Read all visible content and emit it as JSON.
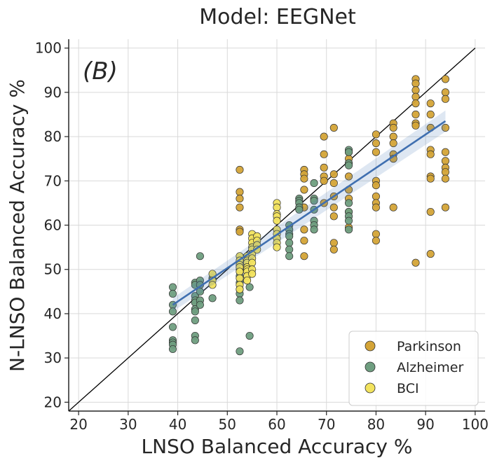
{
  "chart_data": {
    "type": "scatter",
    "title": "Model: EEGNet",
    "panel_label": "(B)",
    "xlabel": "LNSO Balanced Accuracy %",
    "ylabel": "N-LNSO Balanced Accuracy %",
    "xlim": [
      18,
      102
    ],
    "ylim": [
      18,
      102
    ],
    "xticks": [
      20,
      30,
      40,
      50,
      60,
      70,
      80,
      90,
      100
    ],
    "yticks": [
      20,
      30,
      40,
      50,
      60,
      70,
      80,
      90,
      100
    ],
    "x_tick_labels": [
      "20",
      "30",
      "40",
      "50",
      "60",
      "70",
      "80",
      "90",
      "100"
    ],
    "y_tick_labels": [
      "20",
      "30",
      "40",
      "50",
      "60",
      "70",
      "80",
      "90",
      "100"
    ],
    "grid": true,
    "legend_position": "lower-right",
    "identity_line": true,
    "regression": {
      "x_start": 39,
      "y_start": 42,
      "x_end": 94,
      "y_end": 83.5,
      "band": 1.5
    },
    "series": [
      {
        "name": "Parkinson",
        "color": "#d4a437",
        "points": [
          [
            52.5,
            72.5
          ],
          [
            52.5,
            67.5
          ],
          [
            52.5,
            66
          ],
          [
            52.5,
            64
          ],
          [
            52.5,
            59
          ],
          [
            52.5,
            58.5
          ],
          [
            65.5,
            72.5
          ],
          [
            65.5,
            71.5
          ],
          [
            65.5,
            70.5
          ],
          [
            65.5,
            68
          ],
          [
            65.5,
            64
          ],
          [
            65.5,
            59
          ],
          [
            65.5,
            56.5
          ],
          [
            65.5,
            53
          ],
          [
            69.5,
            80
          ],
          [
            69.5,
            76
          ],
          [
            69.5,
            73
          ],
          [
            69.5,
            71
          ],
          [
            69.5,
            70
          ],
          [
            69.5,
            65
          ],
          [
            71.5,
            82
          ],
          [
            71.5,
            71.5
          ],
          [
            71.5,
            69.5
          ],
          [
            71.5,
            66.5
          ],
          [
            71.5,
            64
          ],
          [
            71.5,
            62
          ],
          [
            71.5,
            56
          ],
          [
            71.5,
            54.5
          ],
          [
            74.5,
            76.5
          ],
          [
            74.5,
            75
          ],
          [
            74.5,
            74
          ],
          [
            74.5,
            71
          ],
          [
            74.5,
            68
          ],
          [
            74.5,
            66
          ],
          [
            74.5,
            63
          ],
          [
            74.5,
            59.5
          ],
          [
            80,
            80.5
          ],
          [
            80,
            78.5
          ],
          [
            80,
            76.5
          ],
          [
            80,
            70
          ],
          [
            80,
            69
          ],
          [
            80,
            66.5
          ],
          [
            80,
            65
          ],
          [
            80,
            64
          ],
          [
            80,
            58
          ],
          [
            80,
            56.5
          ],
          [
            83.5,
            83
          ],
          [
            83.5,
            82
          ],
          [
            83.5,
            80
          ],
          [
            83.5,
            78.5
          ],
          [
            83.5,
            76
          ],
          [
            83.5,
            75
          ],
          [
            83.5,
            64
          ],
          [
            88,
            93
          ],
          [
            88,
            92
          ],
          [
            88,
            90.5
          ],
          [
            88,
            89
          ],
          [
            88,
            87.5
          ],
          [
            88,
            85
          ],
          [
            88,
            83
          ],
          [
            88,
            82.5
          ],
          [
            88,
            51.5
          ],
          [
            91,
            87.5
          ],
          [
            91,
            85
          ],
          [
            91,
            82
          ],
          [
            91,
            77
          ],
          [
            91,
            76
          ],
          [
            91,
            71
          ],
          [
            91,
            70.5
          ],
          [
            91,
            63
          ],
          [
            91,
            53.5
          ],
          [
            94,
            93
          ],
          [
            94,
            90
          ],
          [
            94,
            88.5
          ],
          [
            94,
            82
          ],
          [
            94,
            76.5
          ],
          [
            94,
            74.5
          ],
          [
            94,
            73
          ],
          [
            94,
            72
          ],
          [
            94,
            70.5
          ],
          [
            94,
            64
          ]
        ]
      },
      {
        "name": "Alzheimer",
        "color": "#6f9e80",
        "points": [
          [
            39,
            46
          ],
          [
            39,
            44.5
          ],
          [
            39,
            42
          ],
          [
            39,
            40.5
          ],
          [
            39,
            37
          ],
          [
            39,
            34
          ],
          [
            39,
            33.5
          ],
          [
            39,
            33
          ],
          [
            39,
            32
          ],
          [
            43.5,
            47
          ],
          [
            43.5,
            46.5
          ],
          [
            43.5,
            44
          ],
          [
            43.5,
            43
          ],
          [
            43.5,
            42.5
          ],
          [
            43.5,
            41
          ],
          [
            43.5,
            40.5
          ],
          [
            43.5,
            38.5
          ],
          [
            43.5,
            35
          ],
          [
            43.5,
            34
          ],
          [
            44.5,
            53
          ],
          [
            44.5,
            47.5
          ],
          [
            44.5,
            46.5
          ],
          [
            44.5,
            45
          ],
          [
            44.5,
            43
          ],
          [
            44.5,
            42
          ],
          [
            47,
            48
          ],
          [
            47,
            43.5
          ],
          [
            52.5,
            50
          ],
          [
            52.5,
            48.5
          ],
          [
            52.5,
            47
          ],
          [
            52.5,
            45.5
          ],
          [
            52.5,
            44.5
          ],
          [
            52.5,
            43
          ],
          [
            52.5,
            31.5
          ],
          [
            54.5,
            52.5
          ],
          [
            54.5,
            50.5
          ],
          [
            54.5,
            50
          ],
          [
            54.5,
            46
          ],
          [
            54.5,
            35
          ],
          [
            62.5,
            60
          ],
          [
            62.5,
            59
          ],
          [
            62.5,
            58
          ],
          [
            62.5,
            57.5
          ],
          [
            62.5,
            56
          ],
          [
            62.5,
            54.5
          ],
          [
            62.5,
            53
          ],
          [
            64.5,
            66
          ],
          [
            64.5,
            65.5
          ],
          [
            64.5,
            65
          ],
          [
            64.5,
            64
          ],
          [
            64.5,
            63.5
          ],
          [
            67.5,
            69.5
          ],
          [
            67.5,
            66
          ],
          [
            67.5,
            65.5
          ],
          [
            67.5,
            63.5
          ],
          [
            67.5,
            61
          ],
          [
            67.5,
            60
          ],
          [
            67.5,
            59
          ],
          [
            74.5,
            77
          ],
          [
            74.5,
            76.5
          ],
          [
            74.5,
            74
          ],
          [
            74.5,
            73.5
          ],
          [
            74.5,
            65
          ],
          [
            74.5,
            63
          ],
          [
            74.5,
            62
          ],
          [
            74.5,
            61
          ],
          [
            74.5,
            59
          ]
        ]
      },
      {
        "name": "BCI",
        "color": "#f2e35e",
        "points": [
          [
            47,
            49
          ],
          [
            47,
            47.5
          ],
          [
            47,
            46.5
          ],
          [
            52.5,
            53
          ],
          [
            52.5,
            52
          ],
          [
            52.5,
            51
          ],
          [
            52.5,
            50.5
          ],
          [
            52.5,
            49.5
          ],
          [
            52.5,
            48
          ],
          [
            52.5,
            46.5
          ],
          [
            52.5,
            45.5
          ],
          [
            54,
            53
          ],
          [
            54,
            52
          ],
          [
            54,
            51.5
          ],
          [
            54,
            50.5
          ],
          [
            54,
            50
          ],
          [
            54,
            49.5
          ],
          [
            54,
            48.5
          ],
          [
            54,
            47.5
          ],
          [
            55,
            58
          ],
          [
            55,
            57
          ],
          [
            55,
            56
          ],
          [
            55,
            55
          ],
          [
            55,
            54.5
          ],
          [
            55,
            53.5
          ],
          [
            55,
            52.5
          ],
          [
            55,
            51.5
          ],
          [
            55,
            50
          ],
          [
            55,
            49
          ],
          [
            56,
            57.5
          ],
          [
            56,
            56.5
          ],
          [
            56,
            55.5
          ],
          [
            56,
            54.5
          ],
          [
            60,
            65
          ],
          [
            60,
            64
          ],
          [
            60,
            62.5
          ],
          [
            60,
            62
          ],
          [
            60,
            61
          ],
          [
            60,
            59
          ],
          [
            60,
            58
          ],
          [
            60,
            57
          ],
          [
            60,
            56
          ],
          [
            60,
            55
          ]
        ]
      }
    ]
  }
}
